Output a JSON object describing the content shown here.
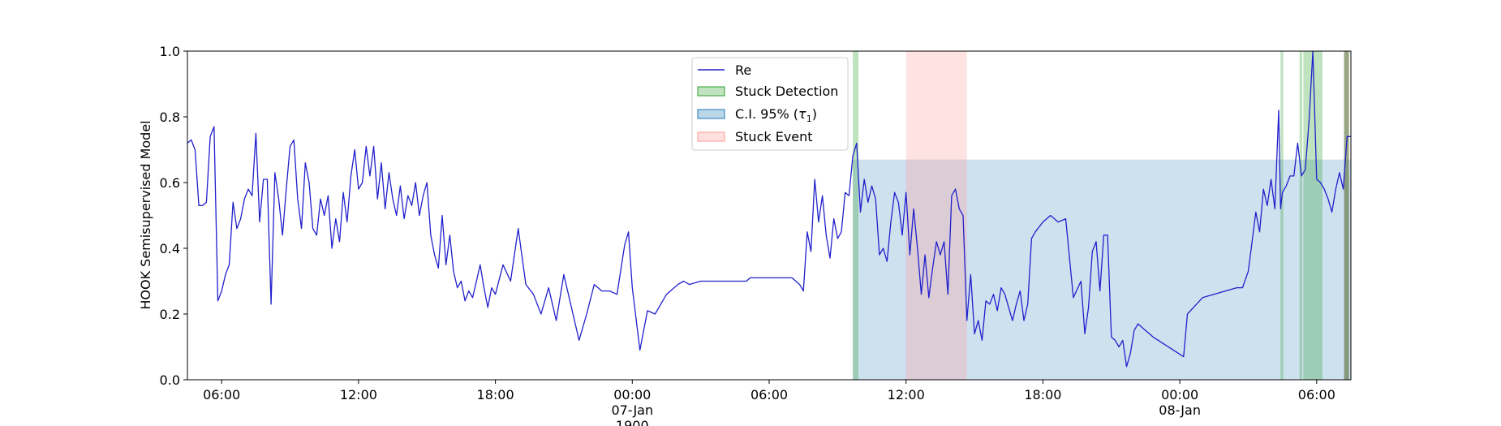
{
  "colors": {
    "line": "#2020cc",
    "stuck_detection": "#2ca02c",
    "ci": "#1f77b4",
    "stuck_event": "#ff9896",
    "olive": "#556b2f"
  },
  "chart_data": {
    "type": "line",
    "title": "",
    "xlabel": "",
    "ylabel": "HOOK Semisupervised Model",
    "ylim": [
      0.0,
      1.0
    ],
    "xlim": [
      "1900-01-06T04:30",
      "1900-01-08T07:30"
    ],
    "yticks": [
      "0.0",
      "0.2",
      "0.4",
      "0.6",
      "0.8",
      "1.0"
    ],
    "xticks": [
      {
        "at": "1900-01-06T06:00",
        "lines": [
          "06:00"
        ]
      },
      {
        "at": "1900-01-06T12:00",
        "lines": [
          "12:00"
        ]
      },
      {
        "at": "1900-01-06T18:00",
        "lines": [
          "18:00"
        ]
      },
      {
        "at": "1900-01-07T00:00",
        "lines": [
          "00:00",
          "07-Jan",
          "1900"
        ]
      },
      {
        "at": "1900-01-07T06:00",
        "lines": [
          "06:00"
        ]
      },
      {
        "at": "1900-01-07T12:00",
        "lines": [
          "12:00"
        ]
      },
      {
        "at": "1900-01-07T18:00",
        "lines": [
          "18:00"
        ]
      },
      {
        "at": "1900-01-08T00:00",
        "lines": [
          "00:00",
          "08-Jan"
        ]
      },
      {
        "at": "1900-01-08T06:00",
        "lines": [
          "06:00"
        ]
      }
    ],
    "legend": {
      "placement": "upper-center",
      "entries": [
        "Re",
        "Stuck Detection",
        "C.I. 95% (",
        ")",
        "Stuck Event"
      ],
      "ci_symbol": "τ",
      "ci_subscript": "1"
    },
    "ci_band": {
      "x_start": "1900-01-07T09:40",
      "x_end": "1900-01-08T07:30",
      "y_low": 0.0,
      "y_high": 0.67
    },
    "stuck_events": [
      {
        "x_start": "1900-01-07T12:00",
        "x_end": "1900-01-07T14:40"
      }
    ],
    "stuck_detections": [
      {
        "x_start": "1900-01-07T09:40",
        "x_end": "1900-01-07T09:55"
      },
      {
        "x_start": "1900-01-08T04:25",
        "x_end": "1900-01-08T04:32"
      },
      {
        "x_start": "1900-01-08T05:15",
        "x_end": "1900-01-08T05:22"
      },
      {
        "x_start": "1900-01-08T05:25",
        "x_end": "1900-01-08T06:15"
      }
    ],
    "olive_spans": [
      {
        "x_start": "1900-01-08T07:12",
        "x_end": "1900-01-08T07:25"
      }
    ],
    "series": [
      {
        "name": "Re",
        "x": [
          "1900-01-06T04:30",
          "1900-01-06T04:40",
          "1900-01-06T04:50",
          "1900-01-06T05:00",
          "1900-01-06T05:10",
          "1900-01-06T05:20",
          "1900-01-06T05:30",
          "1900-01-06T05:40",
          "1900-01-06T05:50",
          "1900-01-06T06:00",
          "1900-01-06T06:10",
          "1900-01-06T06:20",
          "1900-01-06T06:30",
          "1900-01-06T06:40",
          "1900-01-06T06:50",
          "1900-01-06T07:00",
          "1900-01-06T07:10",
          "1900-01-06T07:20",
          "1900-01-06T07:30",
          "1900-01-06T07:40",
          "1900-01-06T07:50",
          "1900-01-06T08:00",
          "1900-01-06T08:10",
          "1900-01-06T08:20",
          "1900-01-06T08:30",
          "1900-01-06T08:40",
          "1900-01-06T08:50",
          "1900-01-06T09:00",
          "1900-01-06T09:10",
          "1900-01-06T09:20",
          "1900-01-06T09:30",
          "1900-01-06T09:40",
          "1900-01-06T09:50",
          "1900-01-06T10:00",
          "1900-01-06T10:10",
          "1900-01-06T10:20",
          "1900-01-06T10:30",
          "1900-01-06T10:40",
          "1900-01-06T10:50",
          "1900-01-06T11:00",
          "1900-01-06T11:10",
          "1900-01-06T11:20",
          "1900-01-06T11:30",
          "1900-01-06T11:40",
          "1900-01-06T11:50",
          "1900-01-06T12:00",
          "1900-01-06T12:10",
          "1900-01-06T12:20",
          "1900-01-06T12:30",
          "1900-01-06T12:40",
          "1900-01-06T12:50",
          "1900-01-06T13:00",
          "1900-01-06T13:10",
          "1900-01-06T13:20",
          "1900-01-06T13:30",
          "1900-01-06T13:40",
          "1900-01-06T13:50",
          "1900-01-06T14:00",
          "1900-01-06T14:10",
          "1900-01-06T14:20",
          "1900-01-06T14:30",
          "1900-01-06T14:40",
          "1900-01-06T14:50",
          "1900-01-06T15:00",
          "1900-01-06T15:10",
          "1900-01-06T15:20",
          "1900-01-06T15:30",
          "1900-01-06T15:40",
          "1900-01-06T15:50",
          "1900-01-06T16:00",
          "1900-01-06T16:10",
          "1900-01-06T16:20",
          "1900-01-06T16:30",
          "1900-01-06T16:40",
          "1900-01-06T16:50",
          "1900-01-06T17:00",
          "1900-01-06T17:10",
          "1900-01-06T17:20",
          "1900-01-06T17:30",
          "1900-01-06T17:40",
          "1900-01-06T17:50",
          "1900-01-06T18:00",
          "1900-01-06T18:20",
          "1900-01-06T18:40",
          "1900-01-06T19:00",
          "1900-01-06T19:20",
          "1900-01-06T19:40",
          "1900-01-06T20:00",
          "1900-01-06T20:20",
          "1900-01-06T20:40",
          "1900-01-06T21:00",
          "1900-01-06T21:20",
          "1900-01-06T21:40",
          "1900-01-06T22:00",
          "1900-01-06T22:20",
          "1900-01-06T22:40",
          "1900-01-06T23:00",
          "1900-01-06T23:20",
          "1900-01-06T23:40",
          "1900-01-06T23:50",
          "1900-01-07T00:00",
          "1900-01-07T00:20",
          "1900-01-07T00:40",
          "1900-01-07T01:00",
          "1900-01-07T01:30",
          "1900-01-07T02:00",
          "1900-01-07T02:15",
          "1900-01-07T02:30",
          "1900-01-07T03:00",
          "1900-01-07T04:00",
          "1900-01-07T05:00",
          "1900-01-07T05:10",
          "1900-01-07T06:00",
          "1900-01-07T07:00",
          "1900-01-07T07:20",
          "1900-01-07T07:30",
          "1900-01-07T07:40",
          "1900-01-07T07:50",
          "1900-01-07T08:00",
          "1900-01-07T08:10",
          "1900-01-07T08:20",
          "1900-01-07T08:30",
          "1900-01-07T08:40",
          "1900-01-07T08:50",
          "1900-01-07T09:00",
          "1900-01-07T09:10",
          "1900-01-07T09:20",
          "1900-01-07T09:30",
          "1900-01-07T09:40",
          "1900-01-07T09:50",
          "1900-01-07T10:00",
          "1900-01-07T10:10",
          "1900-01-07T10:20",
          "1900-01-07T10:30",
          "1900-01-07T10:40",
          "1900-01-07T10:50",
          "1900-01-07T11:00",
          "1900-01-07T11:10",
          "1900-01-07T11:20",
          "1900-01-07T11:30",
          "1900-01-07T11:40",
          "1900-01-07T11:50",
          "1900-01-07T12:00",
          "1900-01-07T12:10",
          "1900-01-07T12:20",
          "1900-01-07T12:30",
          "1900-01-07T12:40",
          "1900-01-07T12:50",
          "1900-01-07T13:00",
          "1900-01-07T13:10",
          "1900-01-07T13:20",
          "1900-01-07T13:30",
          "1900-01-07T13:40",
          "1900-01-07T13:50",
          "1900-01-07T14:00",
          "1900-01-07T14:10",
          "1900-01-07T14:20",
          "1900-01-07T14:30",
          "1900-01-07T14:40",
          "1900-01-07T14:50",
          "1900-01-07T15:00",
          "1900-01-07T15:10",
          "1900-01-07T15:20",
          "1900-01-07T15:30",
          "1900-01-07T15:40",
          "1900-01-07T15:50",
          "1900-01-07T16:00",
          "1900-01-07T16:10",
          "1900-01-07T16:20",
          "1900-01-07T16:30",
          "1900-01-07T16:40",
          "1900-01-07T16:50",
          "1900-01-07T17:00",
          "1900-01-07T17:10",
          "1900-01-07T17:20",
          "1900-01-07T17:30",
          "1900-01-07T17:40",
          "1900-01-07T18:00",
          "1900-01-07T18:20",
          "1900-01-07T18:40",
          "1900-01-07T19:00",
          "1900-01-07T19:20",
          "1900-01-07T19:40",
          "1900-01-07T19:50",
          "1900-01-07T20:00",
          "1900-01-07T20:10",
          "1900-01-07T20:20",
          "1900-01-07T20:30",
          "1900-01-07T20:40",
          "1900-01-07T20:50",
          "1900-01-07T21:00",
          "1900-01-07T21:10",
          "1900-01-07T21:20",
          "1900-01-07T21:30",
          "1900-01-07T21:40",
          "1900-01-07T21:50",
          "1900-01-07T22:00",
          "1900-01-07T22:10",
          "1900-01-07T22:20",
          "1900-01-07T22:30",
          "1900-01-07T22:40",
          "1900-01-07T22:50",
          "1900-01-08T00:10",
          "1900-01-08T00:20",
          "1900-01-08T01:00",
          "1900-01-08T02:00",
          "1900-01-08T02:30",
          "1900-01-08T02:45",
          "1900-01-08T03:00",
          "1900-01-08T03:10",
          "1900-01-08T03:20",
          "1900-01-08T03:30",
          "1900-01-08T03:40",
          "1900-01-08T03:50",
          "1900-01-08T04:00",
          "1900-01-08T04:10",
          "1900-01-08T04:20",
          "1900-01-08T04:25",
          "1900-01-08T04:30",
          "1900-01-08T04:40",
          "1900-01-08T04:50",
          "1900-01-08T05:00",
          "1900-01-08T05:10",
          "1900-01-08T05:20",
          "1900-01-08T05:30",
          "1900-01-08T05:40",
          "1900-01-08T05:50",
          "1900-01-08T06:00",
          "1900-01-08T06:10",
          "1900-01-08T06:20",
          "1900-01-08T06:30",
          "1900-01-08T06:40",
          "1900-01-08T06:50",
          "1900-01-08T07:00",
          "1900-01-08T07:10",
          "1900-01-08T07:20",
          "1900-01-08T07:30"
        ],
        "y": [
          0.72,
          0.73,
          0.7,
          0.53,
          0.53,
          0.54,
          0.74,
          0.77,
          0.24,
          0.27,
          0.32,
          0.35,
          0.54,
          0.46,
          0.49,
          0.55,
          0.58,
          0.56,
          0.75,
          0.48,
          0.61,
          0.61,
          0.23,
          0.63,
          0.55,
          0.44,
          0.58,
          0.71,
          0.73,
          0.55,
          0.46,
          0.66,
          0.6,
          0.46,
          0.44,
          0.55,
          0.5,
          0.56,
          0.4,
          0.49,
          0.42,
          0.57,
          0.48,
          0.62,
          0.7,
          0.58,
          0.6,
          0.71,
          0.62,
          0.71,
          0.55,
          0.66,
          0.52,
          0.63,
          0.55,
          0.5,
          0.59,
          0.49,
          0.56,
          0.53,
          0.6,
          0.5,
          0.56,
          0.6,
          0.44,
          0.38,
          0.34,
          0.5,
          0.35,
          0.44,
          0.33,
          0.28,
          0.3,
          0.24,
          0.27,
          0.25,
          0.3,
          0.35,
          0.28,
          0.22,
          0.28,
          0.26,
          0.35,
          0.3,
          0.46,
          0.29,
          0.26,
          0.2,
          0.28,
          0.18,
          0.32,
          0.22,
          0.12,
          0.2,
          0.29,
          0.27,
          0.27,
          0.26,
          0.41,
          0.45,
          0.28,
          0.09,
          0.21,
          0.2,
          0.26,
          0.29,
          0.3,
          0.29,
          0.3,
          0.3,
          0.3,
          0.31,
          0.31,
          0.31,
          0.29,
          0.27,
          0.45,
          0.39,
          0.61,
          0.48,
          0.56,
          0.44,
          0.37,
          0.49,
          0.43,
          0.45,
          0.57,
          0.56,
          0.68,
          0.72,
          0.51,
          0.61,
          0.54,
          0.59,
          0.55,
          0.38,
          0.4,
          0.36,
          0.48,
          0.57,
          0.54,
          0.44,
          0.57,
          0.38,
          0.52,
          0.4,
          0.26,
          0.38,
          0.25,
          0.34,
          0.42,
          0.38,
          0.42,
          0.26,
          0.56,
          0.58,
          0.52,
          0.5,
          0.18,
          0.32,
          0.14,
          0.18,
          0.12,
          0.24,
          0.23,
          0.26,
          0.21,
          0.28,
          0.26,
          0.22,
          0.18,
          0.23,
          0.27,
          0.18,
          0.23,
          0.43,
          0.45,
          0.48,
          0.5,
          0.48,
          0.49,
          0.25,
          0.3,
          0.14,
          0.22,
          0.39,
          0.42,
          0.27,
          0.44,
          0.44,
          0.13,
          0.12,
          0.1,
          0.12,
          0.04,
          0.08,
          0.15,
          0.17,
          0.16,
          0.15,
          0.14,
          0.13,
          0.07,
          0.2,
          0.25,
          0.27,
          0.28,
          0.28,
          0.33,
          0.42,
          0.51,
          0.45,
          0.58,
          0.53,
          0.61,
          0.52,
          0.82,
          0.52,
          0.57,
          0.59,
          0.62,
          0.62,
          0.72,
          0.62,
          0.64,
          0.79,
          1.0,
          0.61,
          0.6,
          0.58,
          0.55,
          0.51,
          0.58,
          0.63,
          0.58,
          0.74,
          0.74
        ]
      }
    ]
  }
}
